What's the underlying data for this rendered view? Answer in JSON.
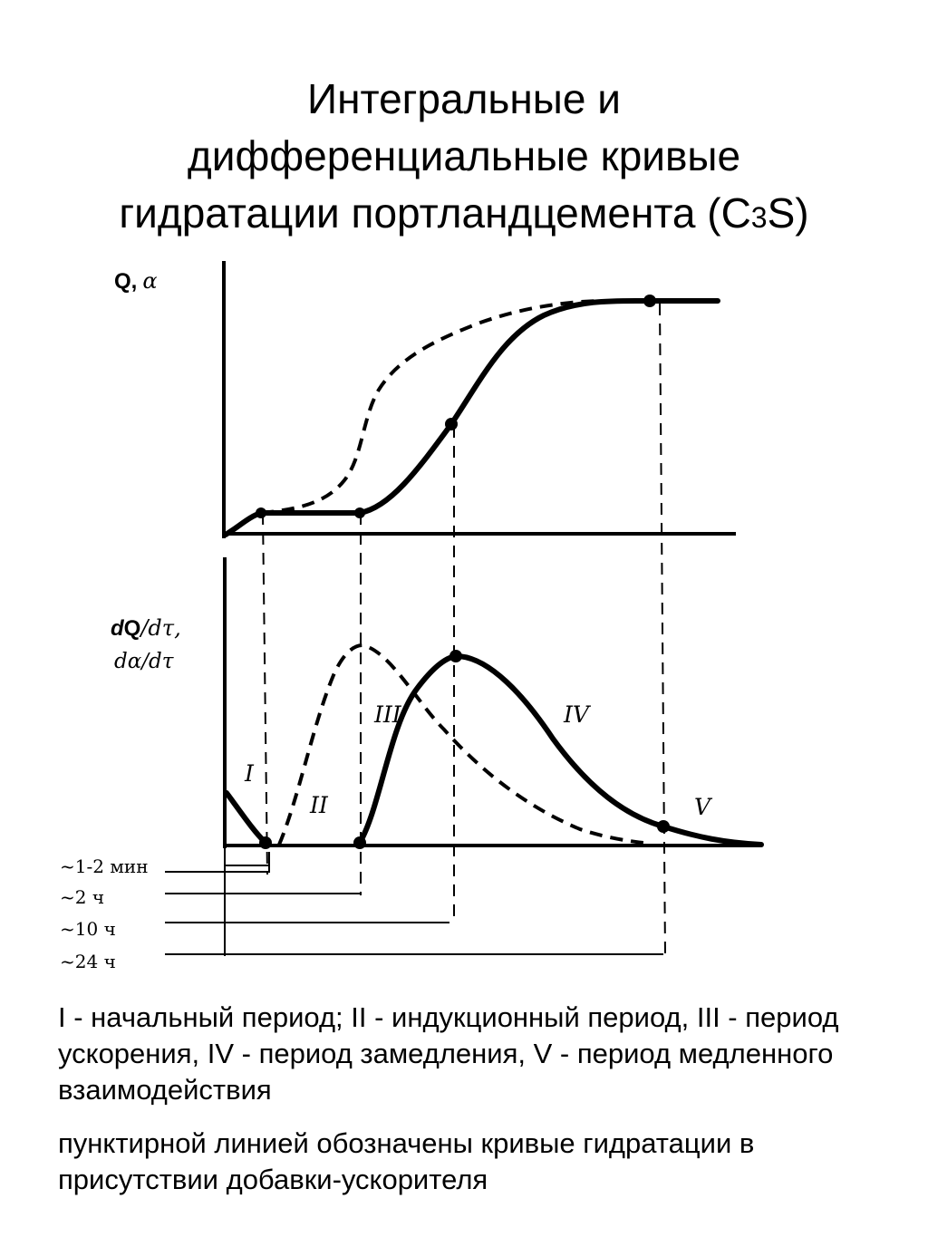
{
  "title": {
    "line1": "Интегральные и",
    "line2": "дифференциальные кривые",
    "line3_main": "гидратации портландцемента (C",
    "line3_sub": "3",
    "line3_end": "S)"
  },
  "upper_plot": {
    "y_label_main": "Q,",
    "y_label_greek": "α"
  },
  "lower_plot": {
    "y_label_line1_d": "d",
    "y_label_line1_q": "Q",
    "y_label_line1_rest": "/dτ,",
    "y_label_line2": "dα/dτ"
  },
  "periods": [
    "I",
    "II",
    "III",
    "IV",
    "V"
  ],
  "time_marks": [
    "~1-2 мин",
    "~2 ч",
    "~10 ч",
    "~24 ч"
  ],
  "legend": {
    "periods_text": "I - начальный период; II - индукционный период, III - период ускорения, IV - период замедления, V - период медленного взаимодействия",
    "dashed_note": "пунктирной линией обозначены кривые гидратации в присутствии добавки-ускорителя"
  }
}
